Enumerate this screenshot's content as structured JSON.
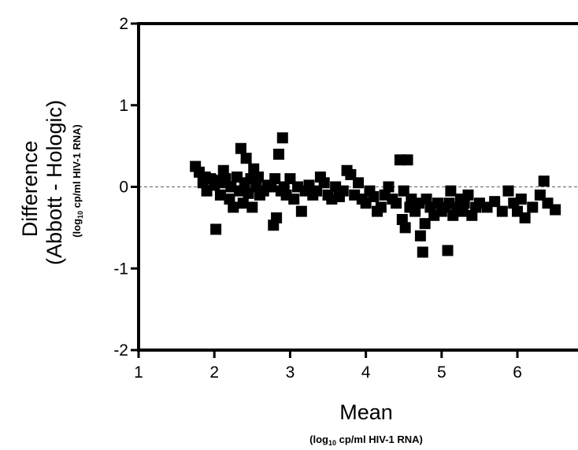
{
  "chart_data": {
    "type": "scatter",
    "title": "",
    "xlabel": "Mean",
    "xlabel_unit": "log10 cp/ml HIV-1 RNA",
    "ylabel": "Difference",
    "ylabel_sub": "(Abbott - Hologic)",
    "ylabel_unit": "log10 cp/ml HIV-1 RNA",
    "xlim": [
      1,
      6.8
    ],
    "ylim": [
      -2,
      2
    ],
    "x_ticks": [
      "1",
      "2",
      "3",
      "4",
      "5",
      "6"
    ],
    "y_ticks": [
      "2",
      "1",
      "0",
      "-1",
      "-2"
    ],
    "reference_line": {
      "y": 0,
      "style": "dashed"
    },
    "grid": false,
    "marker": "square",
    "color": "#000000",
    "points": [
      [
        1.75,
        0.25
      ],
      [
        1.8,
        0.18
      ],
      [
        1.85,
        0.05
      ],
      [
        1.88,
        0.12
      ],
      [
        1.9,
        -0.05
      ],
      [
        1.95,
        0.1
      ],
      [
        2.0,
        0.02
      ],
      [
        2.02,
        -0.52
      ],
      [
        2.05,
        0.08
      ],
      [
        2.08,
        -0.1
      ],
      [
        2.1,
        0.05
      ],
      [
        2.12,
        0.2
      ],
      [
        2.15,
        0.1
      ],
      [
        2.2,
        -0.15
      ],
      [
        2.22,
        0.0
      ],
      [
        2.25,
        -0.25
      ],
      [
        2.3,
        0.12
      ],
      [
        2.33,
        -0.05
      ],
      [
        2.35,
        0.47
      ],
      [
        2.38,
        -0.2
      ],
      [
        2.4,
        0.05
      ],
      [
        2.42,
        0.35
      ],
      [
        2.45,
        -0.08
      ],
      [
        2.48,
        0.1
      ],
      [
        2.5,
        -0.25
      ],
      [
        2.52,
        0.22
      ],
      [
        2.55,
        0.0
      ],
      [
        2.58,
        0.12
      ],
      [
        2.6,
        -0.1
      ],
      [
        2.65,
        -0.05
      ],
      [
        2.7,
        0.02
      ],
      [
        2.75,
        0.0
      ],
      [
        2.78,
        -0.47
      ],
      [
        2.8,
        0.1
      ],
      [
        2.82,
        -0.38
      ],
      [
        2.85,
        0.4
      ],
      [
        2.88,
        -0.05
      ],
      [
        2.9,
        0.6
      ],
      [
        2.92,
        0.0
      ],
      [
        2.95,
        -0.1
      ],
      [
        3.0,
        0.1
      ],
      [
        3.05,
        -0.15
      ],
      [
        3.1,
        0.0
      ],
      [
        3.15,
        -0.3
      ],
      [
        3.2,
        -0.05
      ],
      [
        3.25,
        0.02
      ],
      [
        3.3,
        -0.1
      ],
      [
        3.35,
        -0.05
      ],
      [
        3.4,
        0.12
      ],
      [
        3.45,
        0.05
      ],
      [
        3.5,
        -0.1
      ],
      [
        3.55,
        -0.15
      ],
      [
        3.6,
        0.0
      ],
      [
        3.65,
        -0.12
      ],
      [
        3.7,
        -0.05
      ],
      [
        3.75,
        0.2
      ],
      [
        3.8,
        0.15
      ],
      [
        3.85,
        -0.1
      ],
      [
        3.9,
        0.05
      ],
      [
        3.95,
        -0.15
      ],
      [
        4.0,
        -0.2
      ],
      [
        4.05,
        -0.05
      ],
      [
        4.1,
        -0.12
      ],
      [
        4.15,
        -0.3
      ],
      [
        4.2,
        -0.25
      ],
      [
        4.25,
        -0.1
      ],
      [
        4.3,
        0.0
      ],
      [
        4.35,
        -0.15
      ],
      [
        4.4,
        -0.2
      ],
      [
        4.45,
        0.33
      ],
      [
        4.48,
        -0.4
      ],
      [
        4.5,
        -0.05
      ],
      [
        4.52,
        -0.5
      ],
      [
        4.55,
        0.33
      ],
      [
        4.58,
        -0.25
      ],
      [
        4.6,
        -0.15
      ],
      [
        4.65,
        -0.3
      ],
      [
        4.7,
        -0.2
      ],
      [
        4.72,
        -0.6
      ],
      [
        4.75,
        -0.8
      ],
      [
        4.78,
        -0.45
      ],
      [
        4.8,
        -0.15
      ],
      [
        4.85,
        -0.25
      ],
      [
        4.9,
        -0.35
      ],
      [
        4.95,
        -0.2
      ],
      [
        5.0,
        -0.3
      ],
      [
        5.05,
        -0.25
      ],
      [
        5.08,
        -0.78
      ],
      [
        5.1,
        -0.2
      ],
      [
        5.12,
        -0.05
      ],
      [
        5.15,
        -0.35
      ],
      [
        5.2,
        -0.25
      ],
      [
        5.25,
        -0.15
      ],
      [
        5.28,
        -0.3
      ],
      [
        5.3,
        -0.2
      ],
      [
        5.35,
        -0.1
      ],
      [
        5.4,
        -0.35
      ],
      [
        5.45,
        -0.25
      ],
      [
        5.5,
        -0.2
      ],
      [
        5.6,
        -0.25
      ],
      [
        5.7,
        -0.18
      ],
      [
        5.8,
        -0.3
      ],
      [
        5.88,
        -0.05
      ],
      [
        5.95,
        -0.2
      ],
      [
        6.0,
        -0.3
      ],
      [
        6.05,
        -0.15
      ],
      [
        6.1,
        -0.38
      ],
      [
        6.2,
        -0.25
      ],
      [
        6.3,
        -0.1
      ],
      [
        6.35,
        0.07
      ],
      [
        6.4,
        -0.2
      ],
      [
        6.5,
        -0.28
      ]
    ]
  }
}
